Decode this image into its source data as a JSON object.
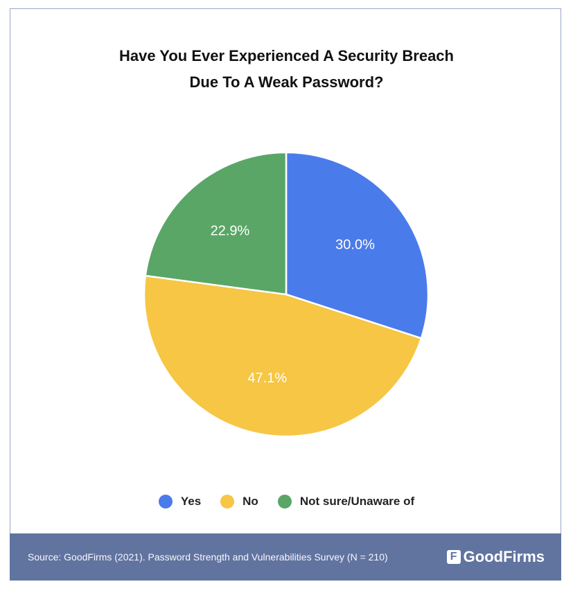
{
  "chart_data": {
    "type": "pie",
    "title": [
      "Have You Ever Experienced A Security Breach",
      "Due To A Weak Password?"
    ],
    "categories": [
      "Yes",
      "No",
      "Not sure/Unaware of"
    ],
    "values": [
      30.0,
      47.1,
      22.9
    ],
    "labels": [
      "30.0%",
      "47.1%",
      "22.9%"
    ],
    "colors": [
      "#4a7bea",
      "#f6c644",
      "#5aa667"
    ],
    "start": "top, clockwise",
    "legend": "bottom"
  },
  "footer": {
    "source": "Source: GoodFirms (2021). Password Strength and Vulnerabilities Survey (N = 210)",
    "logo_text": "GoodFirms"
  }
}
